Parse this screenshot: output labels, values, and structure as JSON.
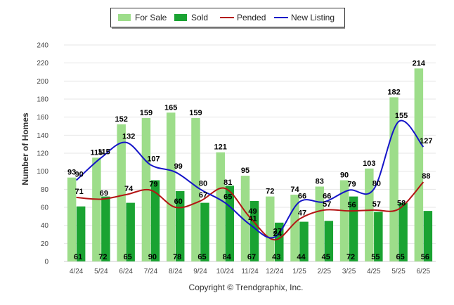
{
  "chart_data": {
    "type": "bar",
    "categories": [
      "4/24",
      "5/24",
      "6/24",
      "7/24",
      "8/24",
      "9/24",
      "10/24",
      "11/24",
      "12/24",
      "1/25",
      "2/25",
      "3/25",
      "4/25",
      "5/25",
      "6/25"
    ],
    "series": [
      {
        "name": "For Sale",
        "type": "bar",
        "color": "#9ddd8a",
        "values": [
          93,
          115,
          152,
          159,
          165,
          159,
          121,
          95,
          72,
          74,
          83,
          90,
          103,
          182,
          214
        ]
      },
      {
        "name": "Sold",
        "type": "bar",
        "color": "#1aa332",
        "values": [
          61,
          72,
          65,
          90,
          78,
          65,
          84,
          67,
          43,
          44,
          45,
          72,
          55,
          65,
          56
        ]
      },
      {
        "name": "Pended",
        "type": "line",
        "color": "#b41414",
        "values": [
          71,
          69,
          74,
          79,
          60,
          67,
          81,
          49,
          24,
          47,
          57,
          56,
          57,
          58,
          88
        ]
      },
      {
        "name": "New Listing",
        "type": "line",
        "color": "#1414c8",
        "values": [
          90,
          115,
          132,
          107,
          99,
          80,
          65,
          41,
          27,
          66,
          66,
          79,
          80,
          155,
          127
        ]
      }
    ],
    "ylabel": "Number of Homes",
    "ylim": [
      0,
      240
    ],
    "yticks": [
      0,
      20,
      40,
      60,
      80,
      100,
      120,
      140,
      160,
      180,
      200,
      220,
      240
    ],
    "grid": true,
    "legend_position": "top-center"
  },
  "footer": {
    "copyright": "Copyright © Trendgraphix, Inc."
  }
}
